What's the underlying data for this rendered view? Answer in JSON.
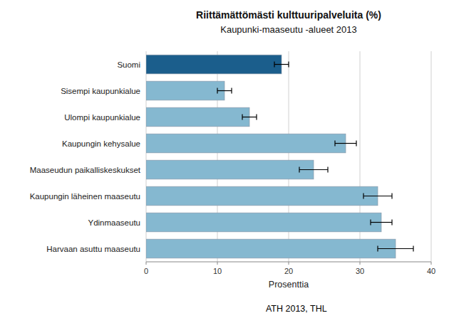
{
  "chart_data": {
    "type": "bar",
    "orientation": "horizontal",
    "title": "Riittämättömästi kulttuuripalveluita (%)",
    "subtitle": "Kaupunki-maaseutu -alueet 2013",
    "x_label": "Prosenttia",
    "annotations": [
      "ATH 2013, THL"
    ],
    "categories": [
      "Harvaan asuttu maaseutu",
      "Ydinmaaseutu",
      "Kaupungin läheinen maaseutu",
      "Maaseudun paikalliskeskukset",
      "Kaupungin kehysalue",
      "Ulompi kaupunkialue",
      "Sisempi kaupunkialue",
      "Suomi"
    ],
    "values": [
      35.0,
      33.0,
      32.5,
      23.5,
      28.0,
      14.5,
      11.0,
      19.0
    ],
    "errors": [
      2.5,
      1.5,
      2.0,
      2.0,
      1.5,
      1.0,
      1.0,
      1.0
    ],
    "colors": [
      "#85b8d0",
      "#85b8d0",
      "#85b8d0",
      "#85b8d0",
      "#85b8d0",
      "#85b8d0",
      "#85b8d0",
      "#1b5e8c"
    ],
    "xlim": [
      0,
      40
    ],
    "xticks": [
      0,
      10,
      20,
      30,
      40
    ],
    "grid": true
  }
}
